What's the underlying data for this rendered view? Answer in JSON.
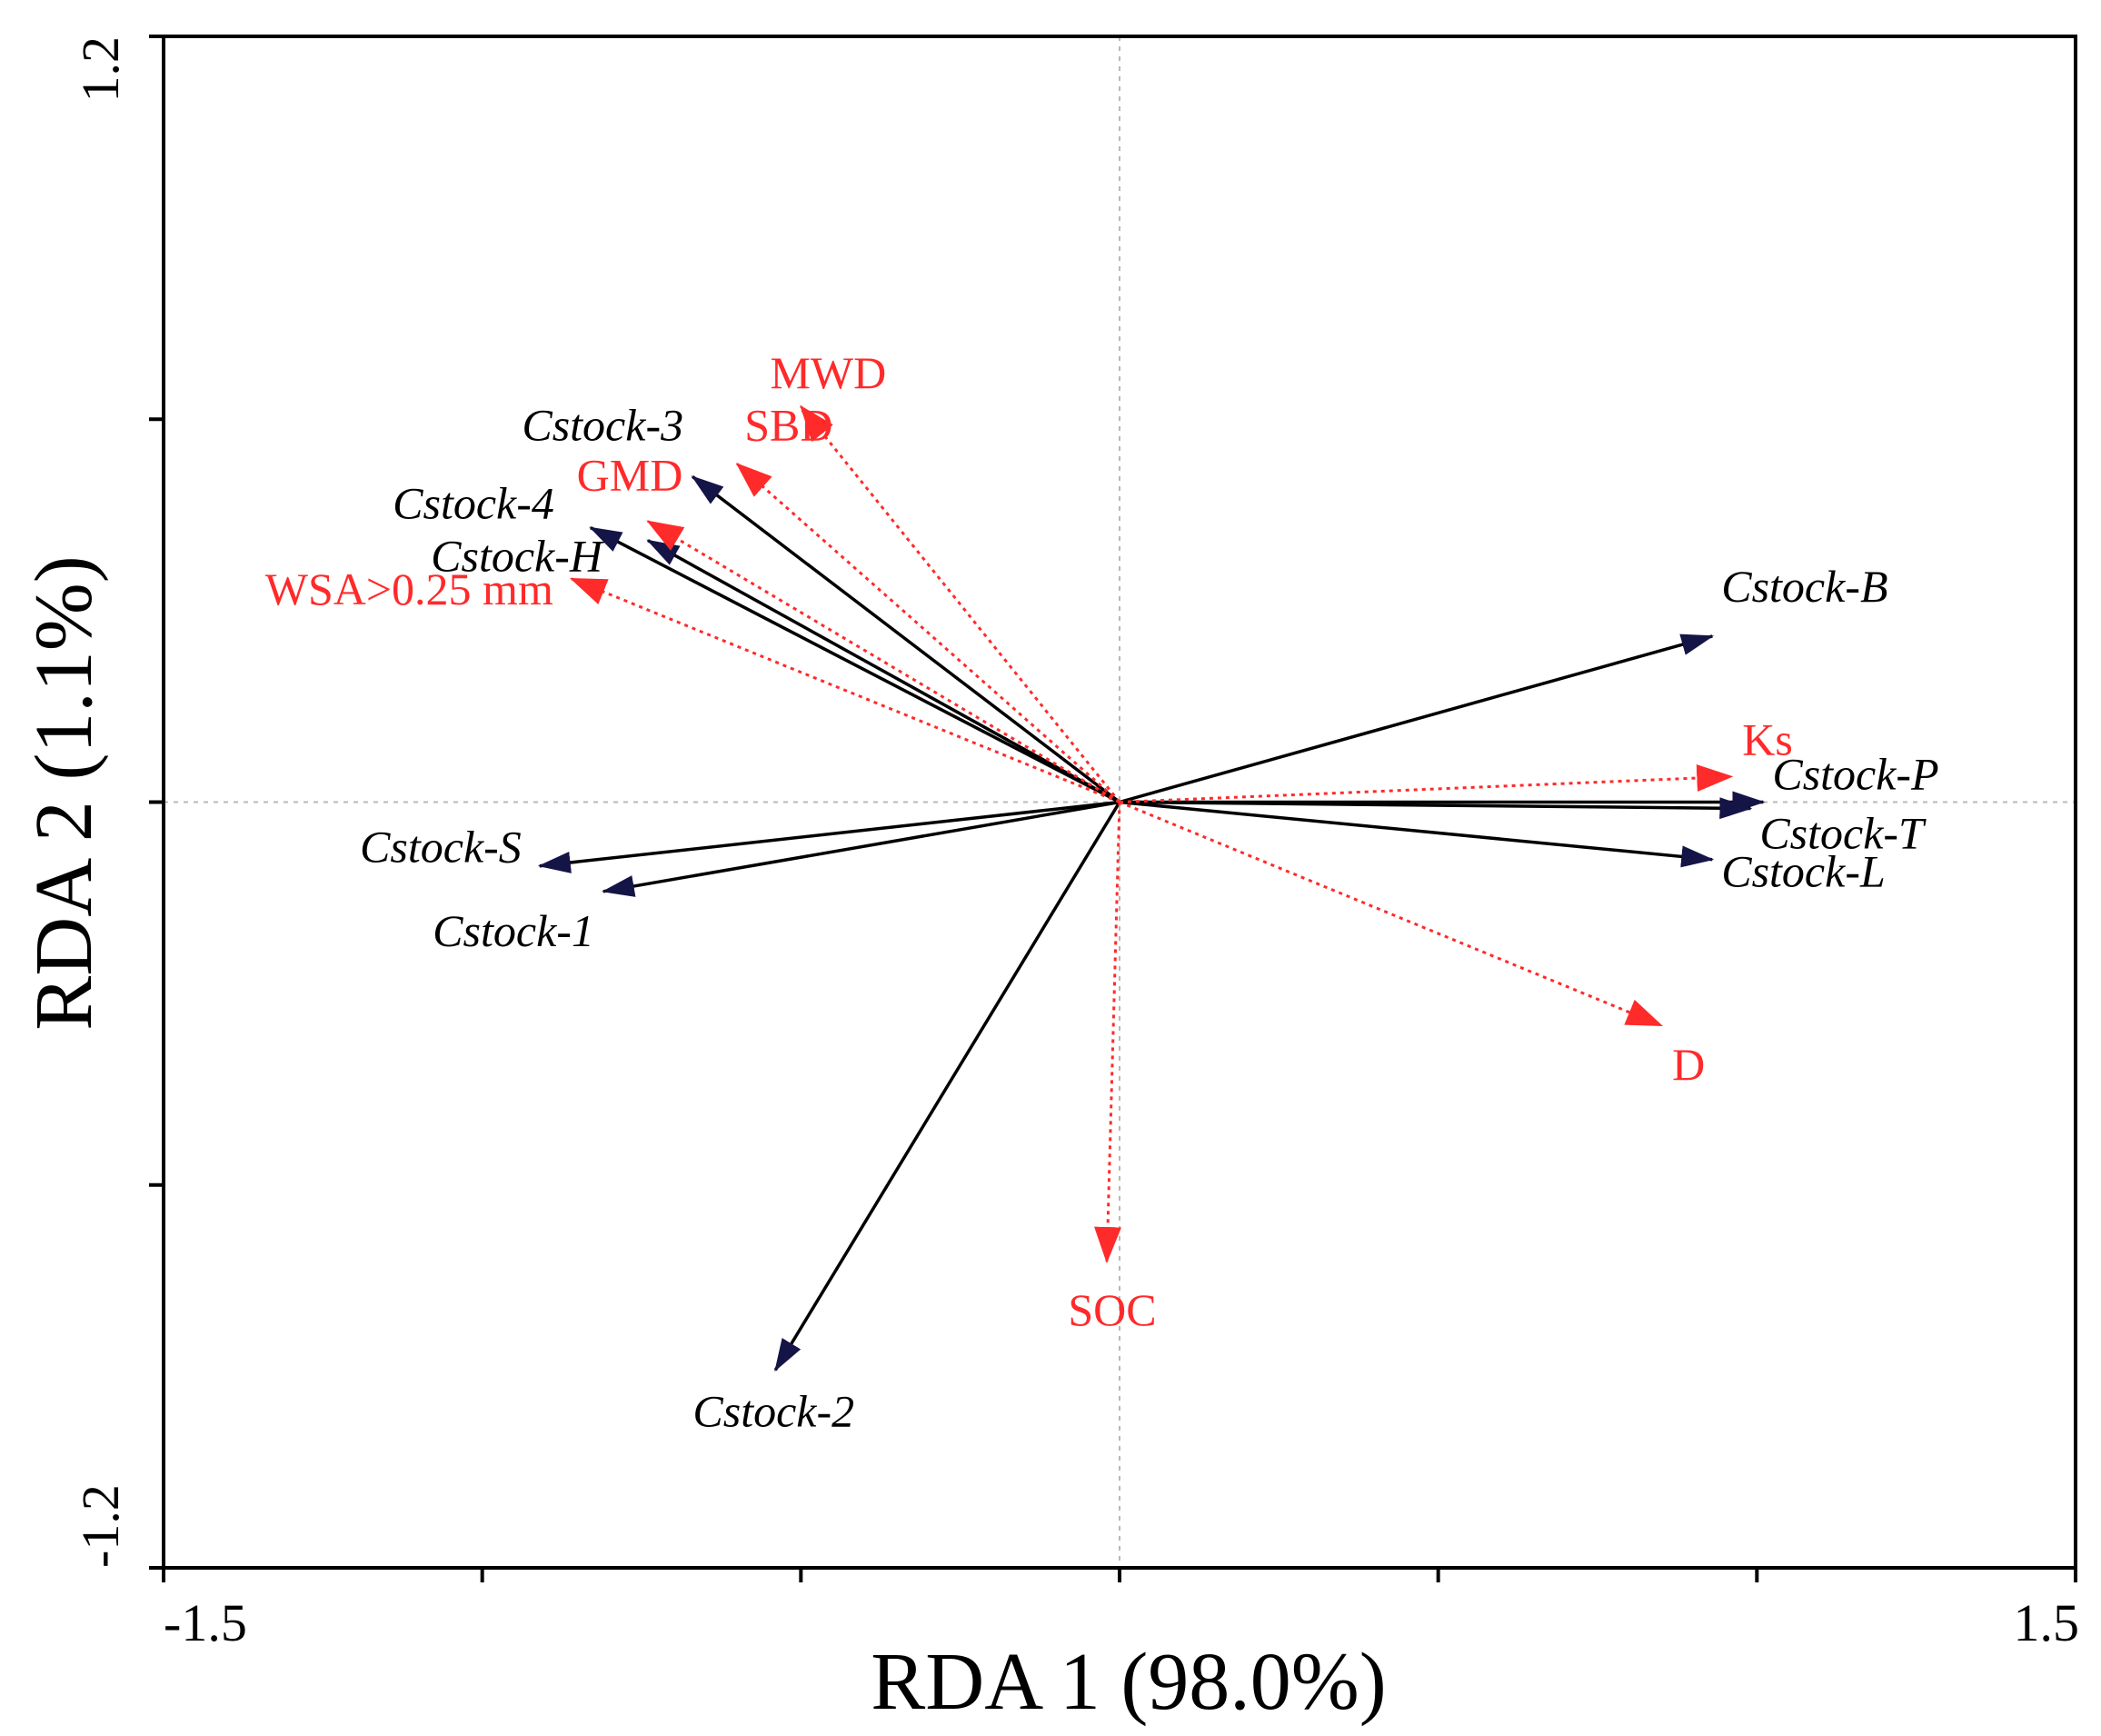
{
  "chart_data": {
    "type": "scatter",
    "subtype": "rda-biplot",
    "xlabel": "RDA 1 (98.0%)",
    "ylabel": "RDA 2 (1.1%)",
    "xlim": [
      -1.5,
      1.5
    ],
    "ylim": [
      -1.2,
      1.2
    ],
    "x_ticks": [
      -1.5,
      -1.0,
      -0.5,
      0.0,
      0.5,
      1.0,
      1.5
    ],
    "y_ticks": [
      -1.2,
      -0.6,
      0.0,
      0.6,
      1.2
    ],
    "x_tick_labels": [
      {
        "value": -1.5,
        "label": "-1.5"
      },
      {
        "value": 1.5,
        "label": "1.5"
      }
    ],
    "y_tick_labels": [
      {
        "value": 1.2,
        "label": "1.2"
      },
      {
        "value": -1.2,
        "label": "-1.2"
      }
    ],
    "grid": false,
    "zero_lines": true,
    "colors": {
      "response": "#000000",
      "response_arrowhead": "#141446",
      "explanatory": "#ff2a2a"
    },
    "series": [
      {
        "group": "response",
        "style": "solid",
        "vectors": [
          {
            "label": "Cstock-3",
            "x": -0.67,
            "y": 0.51
          },
          {
            "label": "Cstock-4",
            "x": -0.83,
            "y": 0.43
          },
          {
            "label": "Cstock-H",
            "x": -0.74,
            "y": 0.41
          },
          {
            "label": "Cstock-B",
            "x": 0.93,
            "y": 0.26
          },
          {
            "label": "Cstock-P",
            "x": 1.01,
            "y": 0.0
          },
          {
            "label": "Cstock-T",
            "x": 0.99,
            "y": -0.01
          },
          {
            "label": "Cstock-L",
            "x": 0.93,
            "y": -0.09
          },
          {
            "label": "Cstock-S",
            "x": -0.91,
            "y": -0.1
          },
          {
            "label": "Cstock-1",
            "x": -0.81,
            "y": -0.14
          },
          {
            "label": "Cstock-2",
            "x": -0.54,
            "y": -0.89
          }
        ]
      },
      {
        "group": "explanatory",
        "style": "dotted",
        "vectors": [
          {
            "label": "MWD",
            "x": -0.5,
            "y": 0.62
          },
          {
            "label": "SBD",
            "x": -0.6,
            "y": 0.53
          },
          {
            "label": "GMD",
            "x": -0.74,
            "y": 0.44
          },
          {
            "label": "WSA>0.25 mm",
            "x": -0.86,
            "y": 0.35
          },
          {
            "label": "Ks",
            "x": 0.96,
            "y": 0.04
          },
          {
            "label": "D",
            "x": 0.85,
            "y": -0.35
          },
          {
            "label": "SOC",
            "x": -0.02,
            "y": -0.72
          }
        ]
      }
    ]
  }
}
